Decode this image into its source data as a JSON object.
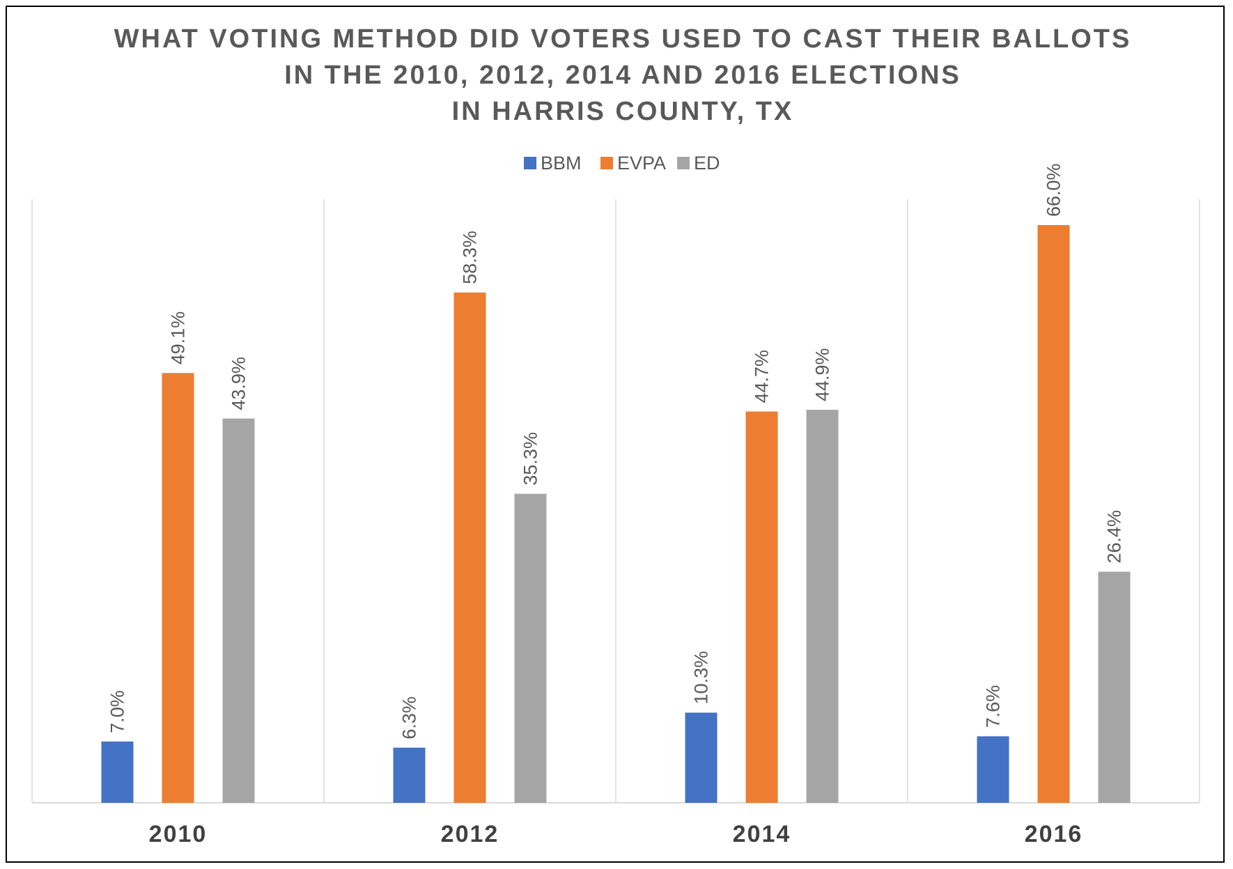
{
  "chart_data": {
    "type": "bar",
    "title": [
      "WHAT VOTING METHOD DID VOTERS USED TO CAST THEIR BALLOTS",
      "IN THE 2010, 2012, 2014 AND 2016 ELECTIONS",
      "IN HARRIS COUNTY, TX"
    ],
    "categories": [
      "2010",
      "2012",
      "2014",
      "2016"
    ],
    "series": [
      {
        "name": "BBM",
        "color": "#4472C4",
        "values": [
          7.0,
          6.3,
          10.3,
          7.6
        ],
        "labels": [
          "7.0%",
          "6.3%",
          "10.3%",
          "7.6%"
        ]
      },
      {
        "name": "EVPA",
        "color": "#ED7D31",
        "values": [
          49.1,
          58.3,
          44.7,
          66.0
        ],
        "labels": [
          "49.1%",
          "58.3%",
          "44.7%",
          "66.0%"
        ]
      },
      {
        "name": "ED",
        "color": "#A5A5A5",
        "values": [
          43.9,
          35.3,
          44.9,
          26.4
        ],
        "labels": [
          "43.9%",
          "35.3%",
          "44.9%",
          "26.4%"
        ]
      }
    ],
    "ylim": [
      0,
      70
    ],
    "legend": "top",
    "grid": "vertical category separators",
    "xlabel": "",
    "ylabel": ""
  }
}
